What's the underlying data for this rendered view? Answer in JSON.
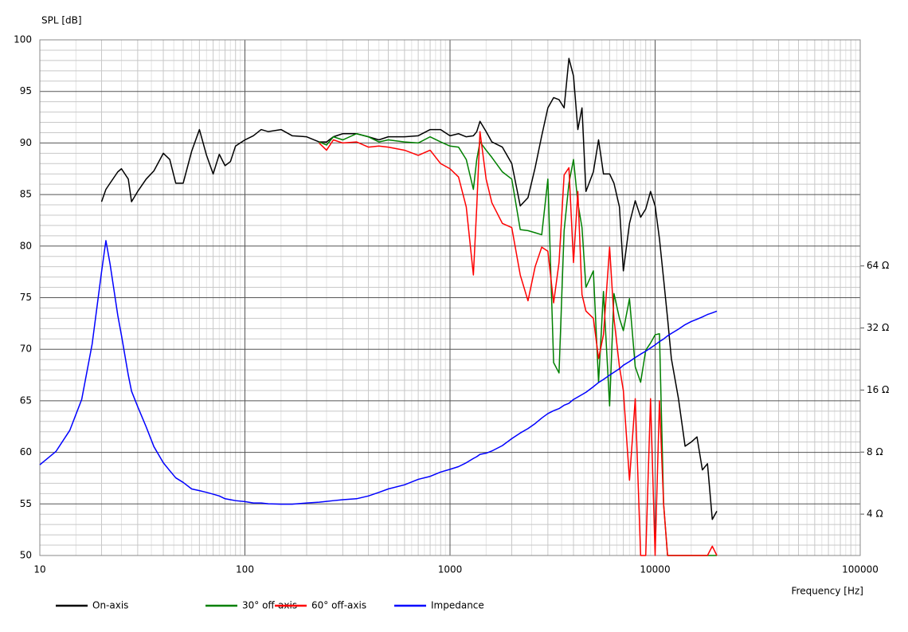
{
  "chart_data": {
    "type": "line",
    "y_label": "SPL [dB]",
    "x_label": "Frequency [Hz]",
    "xlog": true,
    "y2log": true,
    "grid": true,
    "minor_grid": true,
    "legend": "bottom",
    "xlim": [
      10,
      100000
    ],
    "xticks": [
      10,
      100,
      1000,
      10000,
      100000
    ],
    "ylim": [
      50,
      100
    ],
    "yticks": [
      50,
      55,
      60,
      65,
      70,
      75,
      80,
      85,
      90,
      95,
      100
    ],
    "y2lim": [
      2.52,
      800
    ],
    "y2ticks": [
      {
        "value": 4,
        "label": "4 Ω"
      },
      {
        "value": 8,
        "label": "8 Ω"
      },
      {
        "value": 16,
        "label": "16 Ω"
      },
      {
        "value": 32,
        "label": "32 Ω"
      },
      {
        "value": 64,
        "label": "64 Ω"
      }
    ],
    "x": [
      10,
      12,
      14,
      16,
      18,
      20,
      21,
      22,
      24,
      25,
      27,
      28,
      30,
      33,
      36,
      40,
      43,
      46,
      50,
      55,
      60,
      65,
      70,
      75,
      80,
      85,
      90,
      100,
      110,
      120,
      130,
      150,
      170,
      200,
      230,
      250,
      270,
      300,
      350,
      400,
      450,
      500,
      600,
      700,
      800,
      900,
      1000,
      1100,
      1200,
      1300,
      1350,
      1400,
      1500,
      1600,
      1800,
      2000,
      2200,
      2400,
      2600,
      2800,
      3000,
      3200,
      3400,
      3600,
      3800,
      4000,
      4200,
      4400,
      4600,
      5000,
      5300,
      5600,
      6000,
      6300,
      6700,
      7000,
      7500,
      8000,
      8500,
      9000,
      9500,
      10000,
      10500,
      11000,
      11500,
      12000,
      13000,
      14000,
      15000,
      16000,
      17000,
      18000,
      19000,
      20000
    ],
    "series": [
      {
        "name": "On-axis",
        "color": "#000000",
        "values": [
          null,
          null,
          null,
          null,
          null,
          84.3,
          85.5,
          86.1,
          87.2,
          87.5,
          86.5,
          84.3,
          85.3,
          86.5,
          87.3,
          89,
          88.4,
          86.1,
          86.1,
          89.2,
          91.3,
          88.8,
          87,
          88.9,
          87.8,
          88.2,
          89.7,
          90.3,
          90.7,
          91.3,
          91.1,
          91.3,
          90.7,
          90.6,
          90.1,
          90.1,
          90.6,
          90.9,
          90.9,
          90.6,
          90.3,
          90.6,
          90.6,
          90.7,
          91.3,
          91.3,
          90.7,
          90.9,
          90.6,
          90.7,
          91.1,
          92.1,
          91.1,
          90.1,
          89.6,
          88,
          83.9,
          84.7,
          87.6,
          90.7,
          93.4,
          94.4,
          94.2,
          93.4,
          98.2,
          96.5,
          91.3,
          93.4,
          85.3,
          87.2,
          90.3,
          87,
          87,
          86.1,
          83.8,
          77.6,
          82.2,
          84.4,
          82.8,
          83.6,
          85.3,
          83.9,
          80.7,
          76.8,
          73,
          69.1,
          65.2,
          60.6,
          61,
          61.5,
          58.3,
          58.9,
          53.5,
          54.3
        ]
      },
      {
        "name": "30° off-axis",
        "color": "#008000",
        "values": [
          null,
          null,
          null,
          null,
          null,
          null,
          null,
          null,
          null,
          null,
          null,
          null,
          null,
          null,
          null,
          null,
          null,
          null,
          null,
          null,
          null,
          null,
          null,
          null,
          null,
          null,
          null,
          null,
          null,
          null,
          null,
          null,
          null,
          null,
          90.1,
          89.8,
          90.6,
          90.3,
          90.9,
          90.6,
          90.1,
          90.3,
          90.1,
          90,
          90.6,
          90.1,
          89.7,
          89.6,
          88.4,
          85.5,
          88.4,
          90.1,
          89.3,
          88.6,
          87.2,
          86.5,
          81.6,
          81.5,
          81.3,
          81.1,
          86.5,
          68.7,
          67.7,
          81.5,
          86.1,
          88.4,
          84.2,
          81.8,
          76,
          77.6,
          66.8,
          75.6,
          64.5,
          75.4,
          73,
          71.8,
          74.9,
          68.3,
          66.8,
          69.9,
          70.6,
          71.4,
          71.5,
          55,
          50,
          50,
          50,
          50,
          50,
          50,
          50,
          50,
          50,
          50
        ]
      },
      {
        "name": "60° off-axis",
        "color": "#ff0000",
        "values": [
          null,
          null,
          null,
          null,
          null,
          null,
          null,
          null,
          null,
          null,
          null,
          null,
          null,
          null,
          null,
          null,
          null,
          null,
          null,
          null,
          null,
          null,
          null,
          null,
          null,
          null,
          null,
          null,
          null,
          null,
          null,
          null,
          null,
          null,
          90,
          89.3,
          90.3,
          90,
          90.1,
          89.6,
          89.7,
          89.6,
          89.3,
          88.8,
          89.3,
          88,
          87.5,
          86.7,
          83.8,
          77.2,
          83.8,
          91.1,
          86.5,
          84.2,
          82.2,
          81.8,
          77.2,
          74.7,
          78,
          79.9,
          79.5,
          74.5,
          78.4,
          86.9,
          87.6,
          78.4,
          85.3,
          75.3,
          73.7,
          73,
          69.1,
          71.4,
          79.9,
          73,
          68.3,
          66,
          57.3,
          65.2,
          50,
          50,
          65.2,
          50,
          65,
          55,
          50,
          50,
          50,
          50,
          50,
          50,
          50,
          50,
          50.9,
          50
        ]
      },
      {
        "name": "Impedance",
        "color": "#0000ff",
        "axis": "y2",
        "values": [
          6.94,
          8.07,
          10.2,
          14.4,
          26.8,
          60,
          85,
          65.5,
          36.8,
          29.5,
          18.9,
          15.8,
          13.3,
          10.6,
          8.5,
          7.1,
          6.5,
          6.0,
          5.7,
          5.3,
          5.2,
          5.1,
          5.0,
          4.9,
          4.75,
          4.7,
          4.65,
          4.6,
          4.53,
          4.53,
          4.49,
          4.47,
          4.47,
          4.53,
          4.57,
          4.61,
          4.65,
          4.7,
          4.75,
          4.9,
          5.1,
          5.3,
          5.55,
          5.9,
          6.1,
          6.4,
          6.6,
          6.8,
          7.1,
          7.45,
          7.6,
          7.8,
          7.9,
          8.1,
          8.6,
          9.3,
          9.9,
          10.4,
          11,
          11.7,
          12.3,
          12.7,
          13.0,
          13.5,
          13.8,
          14.4,
          14.8,
          15.2,
          15.6,
          16.6,
          17.4,
          18.0,
          18.9,
          19.5,
          20.3,
          21.1,
          22.0,
          23.0,
          23.9,
          24.7,
          25.6,
          26.5,
          27.5,
          28.3,
          29.3,
          30.1,
          31.6,
          33.2,
          34.4,
          35.3,
          36.2,
          37.2,
          37.9,
          38.6
        ]
      }
    ]
  }
}
